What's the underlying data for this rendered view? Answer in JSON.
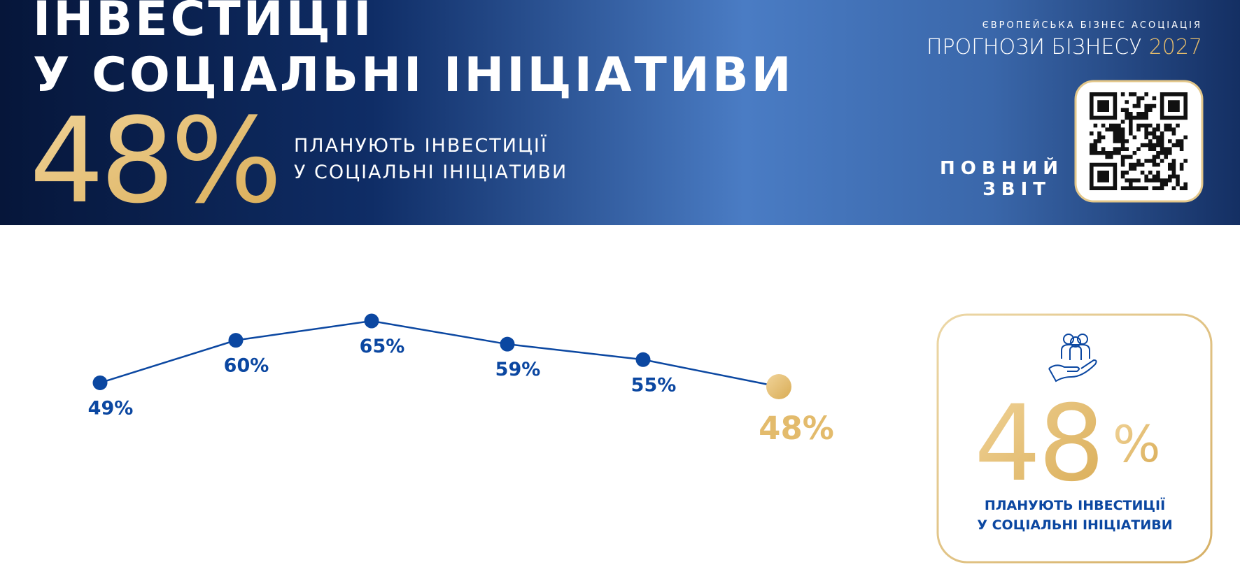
{
  "header": {
    "title_lines": [
      "ІНВЕСТИЦІЇ",
      "У СОЦІАЛЬНІ ІНІЦІАТИВИ"
    ],
    "stat": "48%",
    "stat_caption_lines": [
      "ПЛАНУЮТЬ ІНВЕСТИЦІЇ",
      "У СОЦІАЛЬНІ ІНІЦІАТИВИ"
    ],
    "organization": "ЄВРОПЕЙСЬКА БІЗНЕС АСОЦІАЦІЯ",
    "report_title": "ПРОГНОЗИ БІЗНЕСУ",
    "report_year": "2027",
    "qr_caption_lines": [
      "ПОВНИЙ",
      "ЗВІТ"
    ]
  },
  "chart_data": {
    "type": "line",
    "values": [
      49,
      60,
      65,
      59,
      55,
      48
    ],
    "value_labels": [
      "49%",
      "60%",
      "65%",
      "59%",
      "55%",
      "48%"
    ],
    "color": "#0b47a1",
    "highlight_color": "#e3bb6c"
  },
  "card": {
    "stat_number": "48",
    "stat_unit": "%",
    "caption_lines": [
      "ПЛАНУЮТЬ ІНВЕСТИЦІЇ",
      "У СОЦІАЛЬНІ ІНІЦІАТИВИ"
    ]
  }
}
